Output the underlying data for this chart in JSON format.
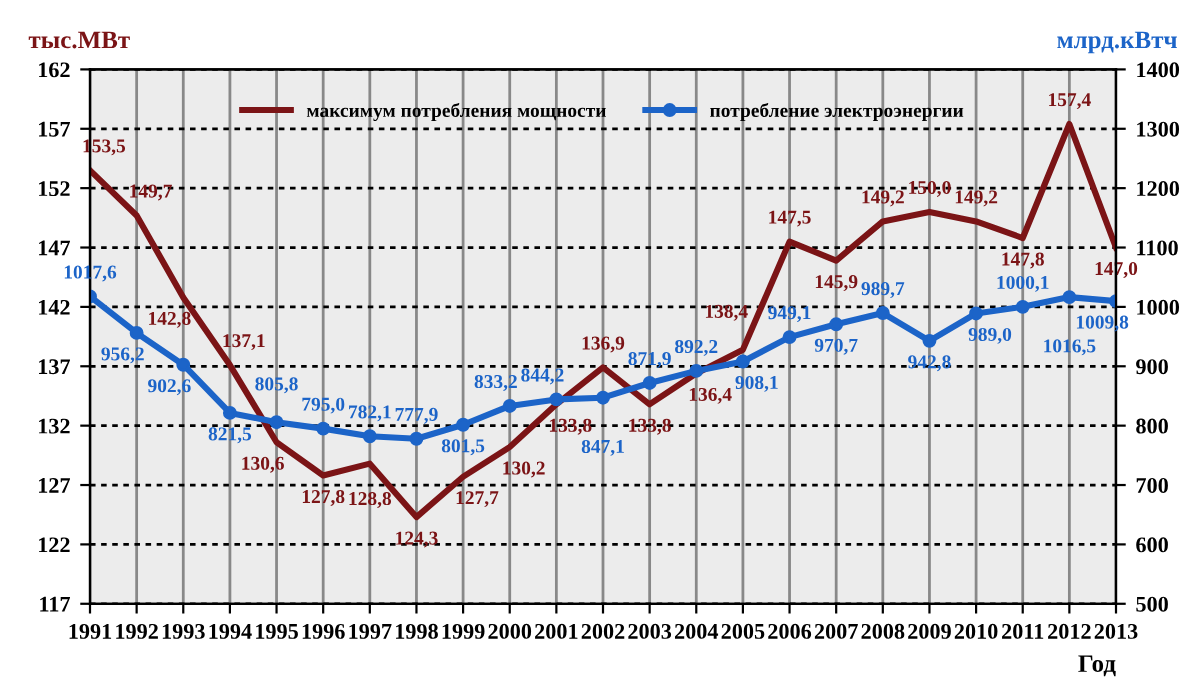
{
  "chart_data": {
    "type": "line",
    "xlabel": "Год",
    "ylabel": "тыс.МВт",
    "y2label": "млрд.кВтч",
    "categories": [
      "1991",
      "1992",
      "1993",
      "1994",
      "1995",
      "1996",
      "1997",
      "1998",
      "1999",
      "2000",
      "2001",
      "2002",
      "2003",
      "2004",
      "2005",
      "2006",
      "2007",
      "2008",
      "2009",
      "2010",
      "2011",
      "2012",
      "2013"
    ],
    "series": [
      {
        "name": "максимум потребления мощности",
        "color": "#7b1416",
        "marker": "none",
        "values": [
          153.5,
          149.7,
          142.8,
          137.1,
          130.6,
          127.8,
          128.8,
          124.3,
          127.7,
          130.2,
          133.8,
          136.9,
          133.8,
          136.4,
          138.4,
          147.5,
          145.9,
          149.2,
          150.0,
          149.2,
          147.8,
          157.4,
          147.0
        ],
        "value_labels": [
          "153,5",
          "149,7",
          "142,8",
          "137,1",
          "130,6",
          "127,8",
          "128,8",
          "124,3",
          "127,7",
          "130,2",
          "133,8",
          "136,9",
          "133,8",
          "136,4",
          "138,4",
          "147,5",
          "145,9",
          "149,2",
          "150,0",
          "149,2",
          "147,8",
          "157,4",
          "147,0"
        ]
      },
      {
        "name": "потребление электроэнергии",
        "color": "#1c64c8",
        "marker": "circle",
        "axis": "y2",
        "values": [
          1017.6,
          956.2,
          902.6,
          821.5,
          805.8,
          795.0,
          782.1,
          777.9,
          801.5,
          833.2,
          844.2,
          847.1,
          871.9,
          892.2,
          908.1,
          949.1,
          970.7,
          989.7,
          942.8,
          989.0,
          1000.1,
          1016.5,
          1009.8
        ],
        "value_labels": [
          "1017,6",
          "956,2",
          "902,6",
          "821,5",
          "805,8",
          "795,0",
          "782,1",
          "777,9",
          "801,5",
          "833,2",
          "844,2",
          "847,1",
          "871,9",
          "892,2",
          "908,1",
          "949,1",
          "970,7",
          "989,7",
          "942,8",
          "989,0",
          "1000,1",
          "1016,5",
          "1009,8"
        ]
      }
    ],
    "ylim": [
      117,
      162
    ],
    "yticks": [
      117,
      122,
      127,
      132,
      137,
      142,
      147,
      152,
      157,
      162
    ],
    "y2lim": [
      500,
      1400
    ],
    "y2ticks": [
      500,
      600,
      700,
      800,
      900,
      1000,
      1100,
      1200,
      1300,
      1400
    ],
    "grid": true,
    "legend": "top"
  }
}
